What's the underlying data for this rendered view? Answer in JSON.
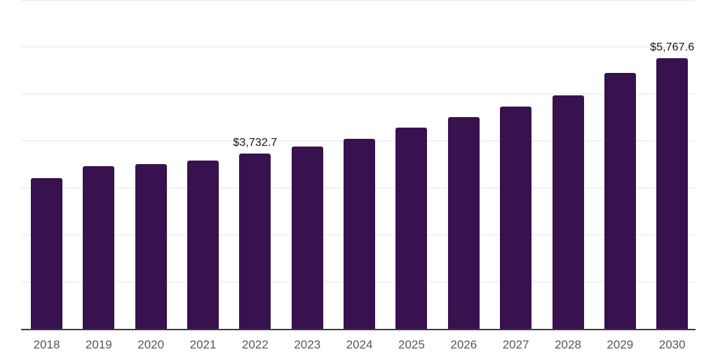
{
  "chart_data": {
    "type": "bar",
    "categories": [
      "2018",
      "2019",
      "2020",
      "2021",
      "2022",
      "2023",
      "2024",
      "2025",
      "2026",
      "2027",
      "2028",
      "2029",
      "2030"
    ],
    "values": [
      3210,
      3460,
      3515,
      3575,
      3732.7,
      3880,
      4045,
      4285,
      4510,
      4730,
      4970,
      5450,
      5767.6
    ],
    "data_labels": {
      "2022": "$3,732.7",
      "2030": "$5,767.6"
    },
    "title": "",
    "xlabel": "",
    "ylabel": "",
    "ylim": [
      0,
      7000
    ],
    "grid_step": 1000,
    "grid": "horizontal-only",
    "legend": "none",
    "bar_color": "#38114f",
    "gridline_color": "#f2f2f2",
    "axis_line_color": "#3c3c3c",
    "tick_label_color": "#54575b",
    "value_label_color": "#141414"
  }
}
